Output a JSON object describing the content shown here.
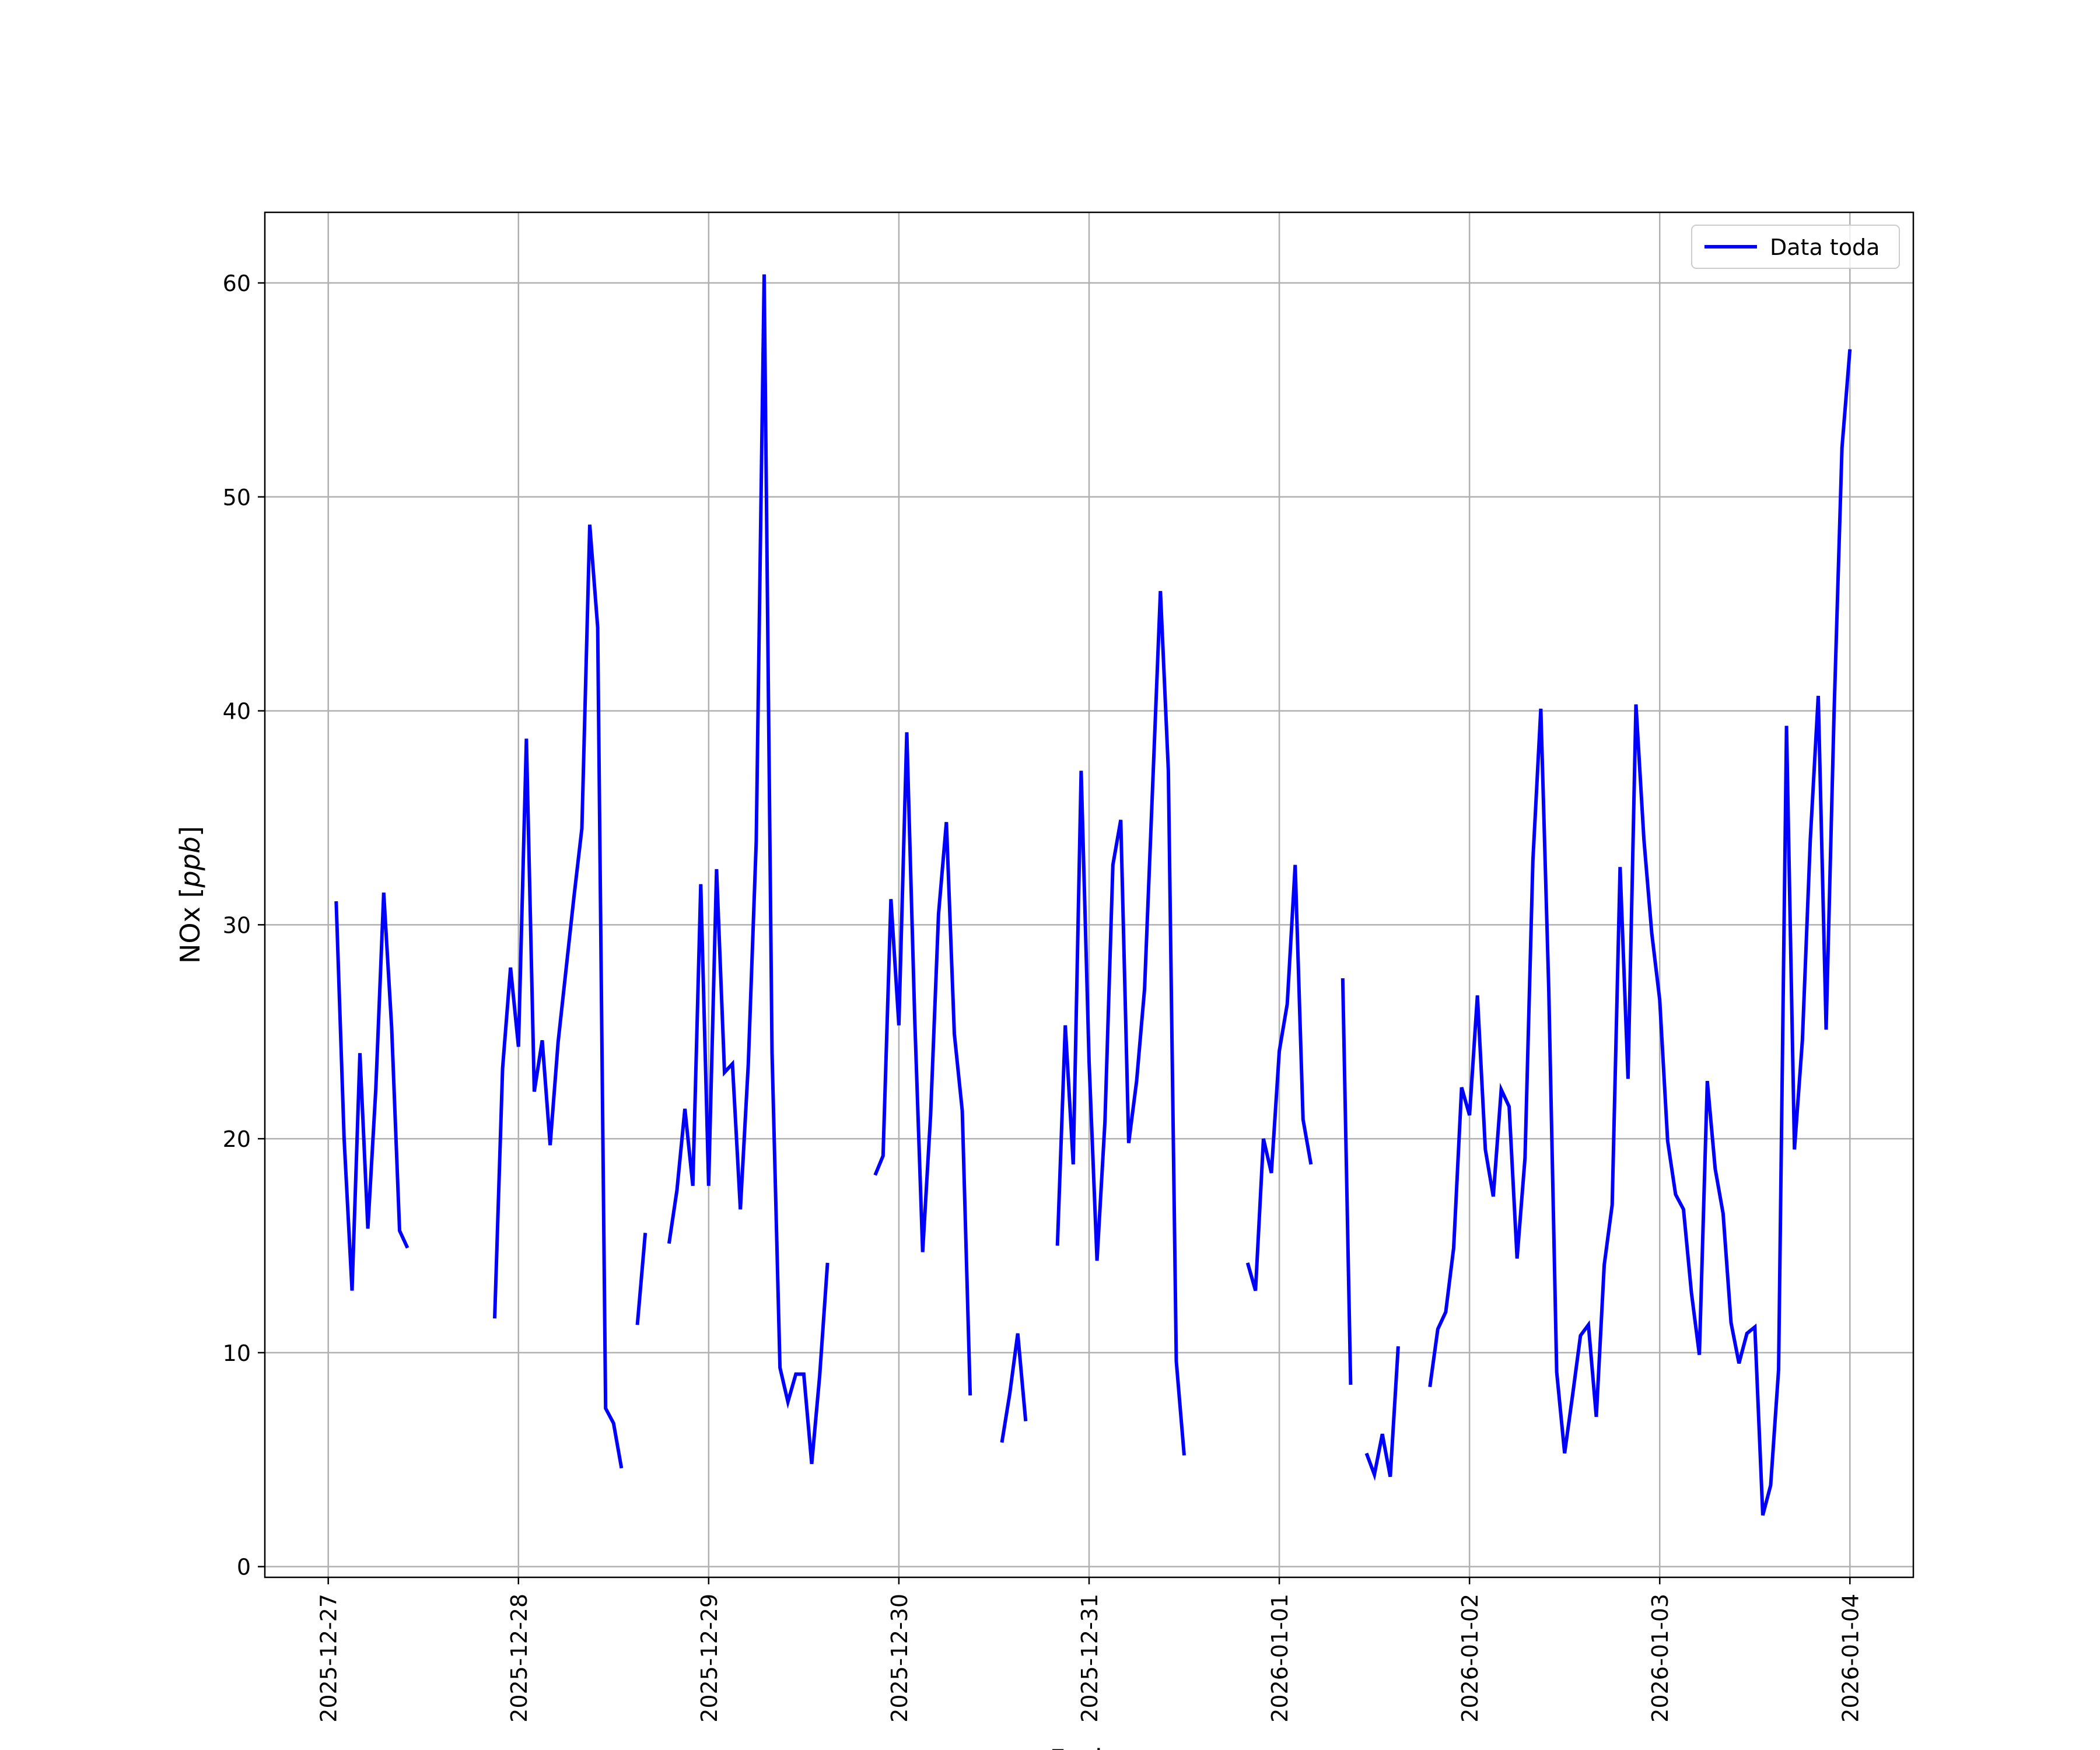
{
  "chart_data": {
    "type": "line",
    "xlabel": "Fecha",
    "ylabel_main": "NOx [",
    "ylabel_unit": "ppb",
    "ylabel_close": "]",
    "xlim": [
      "2025-12-26 16:00",
      "2026-01-04 08:00"
    ],
    "ylim": [
      -0.5,
      63.3
    ],
    "x_ticks": [
      "2025-12-27",
      "2025-12-28",
      "2025-12-29",
      "2025-12-30",
      "2025-12-31",
      "2026-01-01",
      "2026-01-02",
      "2026-01-03",
      "2026-01-04"
    ],
    "y_ticks": [
      0,
      10,
      20,
      30,
      40,
      50,
      60
    ],
    "grid": true,
    "legend_position": "top-right",
    "series": [
      {
        "name": "Data toda",
        "color": "#0000ff",
        "points": [
          [
            "2025-12-27 01:00",
            31.1
          ],
          [
            "2025-12-27 02:00",
            20.0
          ],
          [
            "2025-12-27 03:00",
            12.9
          ],
          [
            "2025-12-27 04:00",
            24.0
          ],
          [
            "2025-12-27 05:00",
            15.8
          ],
          [
            "2025-12-27 06:00",
            22.3
          ],
          [
            "2025-12-27 07:00",
            31.5
          ],
          [
            "2025-12-27 08:00",
            25.2
          ],
          [
            "2025-12-27 09:00",
            15.7
          ],
          [
            "2025-12-27 10:00",
            14.9
          ],
          null,
          [
            "2025-12-27 21:00",
            11.6
          ],
          [
            "2025-12-27 22:00",
            23.3
          ],
          [
            "2025-12-27 23:00",
            28.0
          ],
          [
            "2025-12-28 00:00",
            24.3
          ],
          [
            "2025-12-28 01:00",
            38.7
          ],
          [
            "2025-12-28 02:00",
            22.2
          ],
          [
            "2025-12-28 03:00",
            24.6
          ],
          [
            "2025-12-28 04:00",
            19.7
          ],
          [
            "2025-12-28 05:00",
            24.5
          ],
          [
            "2025-12-28 06:00",
            27.9
          ],
          [
            "2025-12-28 07:00",
            31.3
          ],
          [
            "2025-12-28 08:00",
            34.5
          ],
          [
            "2025-12-28 09:00",
            48.7
          ],
          [
            "2025-12-28 10:00",
            43.9
          ],
          [
            "2025-12-28 11:00",
            7.4
          ],
          [
            "2025-12-28 12:00",
            6.7
          ],
          [
            "2025-12-28 13:00",
            4.6
          ],
          null,
          [
            "2025-12-28 15:00",
            11.3
          ],
          [
            "2025-12-28 16:00",
            15.6
          ],
          null,
          [
            "2025-12-28 19:00",
            15.1
          ],
          [
            "2025-12-28 20:00",
            17.6
          ],
          [
            "2025-12-28 21:00",
            21.4
          ],
          [
            "2025-12-28 22:00",
            17.8
          ],
          [
            "2025-12-28 23:00",
            31.9
          ],
          [
            "2025-12-29 00:00",
            17.8
          ],
          [
            "2025-12-29 01:00",
            32.6
          ],
          [
            "2025-12-29 02:00",
            23.1
          ],
          [
            "2025-12-29 03:00",
            23.5
          ],
          [
            "2025-12-29 04:00",
            16.7
          ],
          [
            "2025-12-29 05:00",
            23.5
          ],
          [
            "2025-12-29 06:00",
            33.9
          ],
          [
            "2025-12-29 07:00",
            60.4
          ],
          [
            "2025-12-29 08:00",
            24.0
          ],
          [
            "2025-12-29 09:00",
            9.3
          ],
          [
            "2025-12-29 10:00",
            7.7
          ],
          [
            "2025-12-29 11:00",
            9.0
          ],
          [
            "2025-12-29 12:00",
            9.0
          ],
          [
            "2025-12-29 13:00",
            4.8
          ],
          [
            "2025-12-29 14:00",
            8.9
          ],
          [
            "2025-12-29 15:00",
            14.2
          ],
          null,
          [
            "2025-12-29 21:00",
            18.3
          ],
          [
            "2025-12-29 22:00",
            19.2
          ],
          [
            "2025-12-29 23:00",
            31.2
          ],
          [
            "2025-12-30 00:00",
            25.3
          ],
          [
            "2025-12-30 01:00",
            39.0
          ],
          [
            "2025-12-30 02:00",
            25.6
          ],
          [
            "2025-12-30 03:00",
            14.7
          ],
          [
            "2025-12-30 04:00",
            21.1
          ],
          [
            "2025-12-30 05:00",
            30.5
          ],
          [
            "2025-12-30 06:00",
            34.8
          ],
          [
            "2025-12-30 07:00",
            24.9
          ],
          [
            "2025-12-30 08:00",
            21.3
          ],
          [
            "2025-12-30 09:00",
            8.0
          ],
          null,
          [
            "2025-12-30 13:00",
            5.8
          ],
          [
            "2025-12-30 14:00",
            8.1
          ],
          [
            "2025-12-30 15:00",
            10.9
          ],
          [
            "2025-12-30 16:00",
            6.8
          ],
          null,
          [
            "2025-12-30 20:00",
            15.0
          ],
          [
            "2025-12-30 21:00",
            25.3
          ],
          [
            "2025-12-30 22:00",
            18.8
          ],
          [
            "2025-12-30 23:00",
            37.2
          ],
          [
            "2025-12-31 00:00",
            23.6
          ],
          [
            "2025-12-31 01:00",
            14.3
          ],
          [
            "2025-12-31 02:00",
            20.8
          ],
          [
            "2025-12-31 03:00",
            32.8
          ],
          [
            "2025-12-31 04:00",
            34.9
          ],
          [
            "2025-12-31 05:00",
            19.8
          ],
          [
            "2025-12-31 06:00",
            22.7
          ],
          [
            "2025-12-31 07:00",
            27.0
          ],
          [
            "2025-12-31 08:00",
            36.3
          ],
          [
            "2025-12-31 09:00",
            45.6
          ],
          [
            "2025-12-31 10:00",
            37.2
          ],
          [
            "2025-12-31 11:00",
            9.6
          ],
          [
            "2025-12-31 12:00",
            5.2
          ],
          null,
          [
            "2025-12-31 20:00",
            14.2
          ],
          [
            "2025-12-31 21:00",
            12.9
          ],
          [
            "2025-12-31 22:00",
            20.0
          ],
          [
            "2025-12-31 23:00",
            18.4
          ],
          [
            "2026-01-01 00:00",
            24.1
          ],
          [
            "2026-01-01 01:00",
            26.3
          ],
          [
            "2026-01-01 02:00",
            32.8
          ],
          [
            "2026-01-01 03:00",
            20.9
          ],
          [
            "2026-01-01 04:00",
            18.8
          ],
          null,
          [
            "2026-01-01 08:00",
            27.5
          ],
          [
            "2026-01-01 09:00",
            8.5
          ],
          null,
          [
            "2026-01-01 11:00",
            5.3
          ],
          [
            "2026-01-01 12:00",
            4.3
          ],
          [
            "2026-01-01 13:00",
            6.2
          ],
          [
            "2026-01-01 14:00",
            4.2
          ],
          [
            "2026-01-01 15:00",
            10.3
          ],
          null,
          [
            "2026-01-01 19:00",
            8.4
          ],
          [
            "2026-01-01 20:00",
            11.1
          ],
          [
            "2026-01-01 21:00",
            11.9
          ],
          [
            "2026-01-01 22:00",
            14.9
          ],
          [
            "2026-01-01 23:00",
            22.4
          ],
          [
            "2026-01-02 00:00",
            21.1
          ],
          [
            "2026-01-02 01:00",
            26.7
          ],
          [
            "2026-01-02 02:00",
            19.5
          ],
          [
            "2026-01-02 03:00",
            17.3
          ],
          [
            "2026-01-02 04:00",
            22.3
          ],
          [
            "2026-01-02 05:00",
            21.5
          ],
          [
            "2026-01-02 06:00",
            14.4
          ],
          [
            "2026-01-02 07:00",
            19.1
          ],
          [
            "2026-01-02 08:00",
            33.0
          ],
          [
            "2026-01-02 09:00",
            40.1
          ],
          [
            "2026-01-02 10:00",
            27.0
          ],
          [
            "2026-01-02 11:00",
            9.1
          ],
          [
            "2026-01-02 12:00",
            5.3
          ],
          [
            "2026-01-02 13:00",
            8.0
          ],
          [
            "2026-01-02 14:00",
            10.8
          ],
          [
            "2026-01-02 15:00",
            11.3
          ],
          [
            "2026-01-02 16:00",
            7.0
          ],
          [
            "2026-01-02 17:00",
            14.1
          ],
          [
            "2026-01-02 18:00",
            16.9
          ],
          [
            "2026-01-02 19:00",
            32.7
          ],
          [
            "2026-01-02 20:00",
            22.8
          ],
          [
            "2026-01-02 21:00",
            40.3
          ],
          [
            "2026-01-02 22:00",
            34.0
          ],
          [
            "2026-01-02 23:00",
            29.6
          ],
          [
            "2026-01-03 00:00",
            26.5
          ],
          [
            "2026-01-03 01:00",
            19.9
          ],
          [
            "2026-01-03 02:00",
            17.4
          ],
          [
            "2026-01-03 03:00",
            16.7
          ],
          [
            "2026-01-03 04:00",
            12.8
          ],
          [
            "2026-01-03 05:00",
            9.9
          ],
          [
            "2026-01-03 06:00",
            22.7
          ],
          [
            "2026-01-03 07:00",
            18.6
          ],
          [
            "2026-01-03 08:00",
            16.5
          ],
          [
            "2026-01-03 09:00",
            11.4
          ],
          [
            "2026-01-03 10:00",
            9.5
          ],
          [
            "2026-01-03 11:00",
            10.9
          ],
          [
            "2026-01-03 12:00",
            11.2
          ],
          [
            "2026-01-03 13:00",
            2.4
          ],
          [
            "2026-01-03 14:00",
            3.8
          ],
          [
            "2026-01-03 15:00",
            9.2
          ],
          [
            "2026-01-03 16:00",
            39.3
          ],
          [
            "2026-01-03 17:00",
            19.5
          ],
          [
            "2026-01-03 18:00",
            24.6
          ],
          [
            "2026-01-03 19:00",
            34.0
          ],
          [
            "2026-01-03 20:00",
            40.7
          ],
          [
            "2026-01-03 21:00",
            25.1
          ],
          [
            "2026-01-03 22:00",
            39.9
          ],
          [
            "2026-01-03 23:00",
            52.3
          ],
          [
            "2026-01-04 00:00",
            56.9
          ]
        ]
      }
    ]
  }
}
